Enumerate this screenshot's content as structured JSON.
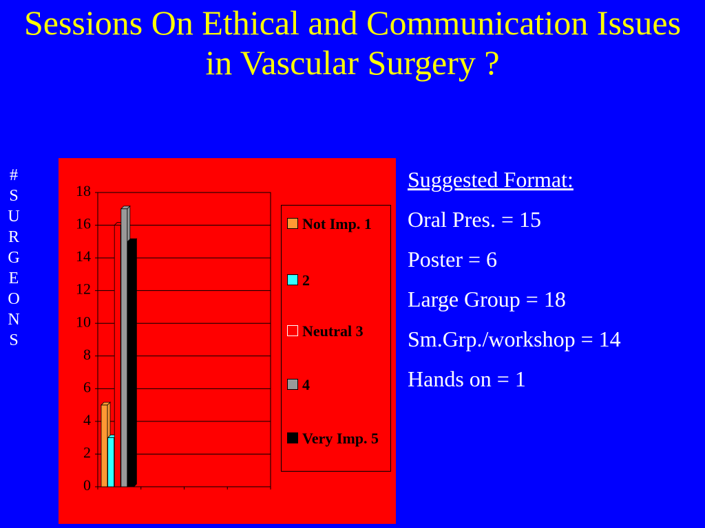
{
  "title": "Sessions On Ethical and Communication Issues in Vascular Surgery ?",
  "chart_data": {
    "type": "bar",
    "ylabel": "#SURGEONS",
    "categories": [
      null
    ],
    "series": [
      {
        "name": "Not Imp. 1",
        "color": "#ff9933",
        "values": [
          5
        ]
      },
      {
        "name": "2",
        "color": "#33ffff",
        "values": [
          3
        ]
      },
      {
        "name": "Neutral 3",
        "color": "#ff0000",
        "values": [
          16
        ]
      },
      {
        "name": "4",
        "color": "#999999",
        "values": [
          17
        ]
      },
      {
        "name": "Very Imp. 5",
        "color": "#000000",
        "values": [
          15
        ]
      }
    ],
    "ylim": [
      0,
      18
    ],
    "yticks": [
      0,
      2,
      4,
      6,
      8,
      10,
      12,
      14,
      16,
      18
    ],
    "grid": true,
    "legend": "right"
  },
  "notes": {
    "heading": "Suggested Format:",
    "items": [
      "Oral Pres. = 15",
      "Poster = 6",
      "Large Group = 18",
      "Sm.Grp./workshop = 14",
      "Hands on = 1"
    ]
  }
}
